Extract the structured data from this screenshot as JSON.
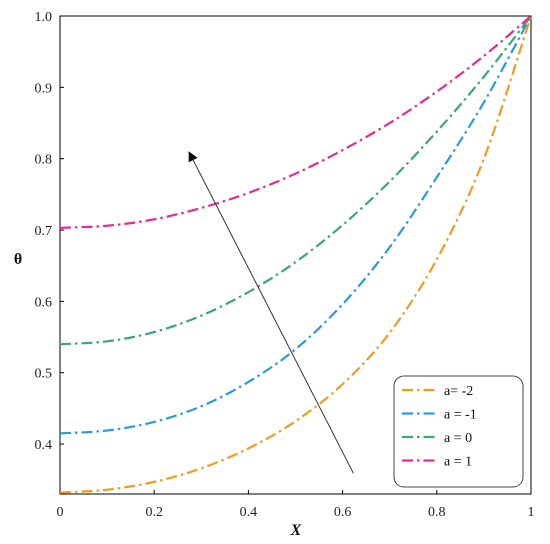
{
  "chart_data": {
    "type": "line",
    "title": "",
    "xlabel": "X",
    "ylabel": "θ",
    "xlim": [
      0,
      1
    ],
    "ylim": [
      0.33,
      1.0
    ],
    "x_ticks": [
      0,
      0.2,
      0.4,
      0.6,
      0.8,
      1
    ],
    "x_tick_labels": [
      "0",
      "0.2",
      "0.4",
      "0.6",
      "0.8",
      "1"
    ],
    "y_ticks": [
      0.4,
      0.5,
      0.6,
      0.7,
      0.8,
      0.9,
      1.0
    ],
    "y_tick_labels": [
      "0.4",
      "0.5",
      "0.6",
      "0.7",
      "0.8",
      "0.9",
      "1.0"
    ],
    "grid": false,
    "legend_position": "bottom-right",
    "line_style": "dash-dot",
    "x": [
      0,
      0.1,
      0.2,
      0.3,
      0.4,
      0.5,
      0.6,
      0.7,
      0.8,
      0.9,
      1.0
    ],
    "series": [
      {
        "name": "a= -2",
        "color": "#f59a1d",
        "values": [
          0.332,
          0.336,
          0.347,
          0.366,
          0.394,
          0.432,
          0.484,
          0.556,
          0.659,
          0.8,
          1.0
        ]
      },
      {
        "name": "a = -1",
        "color": "#2a9ae0",
        "values": [
          0.415,
          0.419,
          0.431,
          0.453,
          0.487,
          0.533,
          0.596,
          0.676,
          0.774,
          0.879,
          1.0
        ]
      },
      {
        "name": "a = 0",
        "color": "#3aaa6c",
        "values": [
          0.54,
          0.544,
          0.557,
          0.58,
          0.613,
          0.655,
          0.707,
          0.768,
          0.838,
          0.915,
          1.0
        ]
      },
      {
        "name": "a = 1",
        "color": "#e62a91",
        "values": [
          0.703,
          0.706,
          0.715,
          0.731,
          0.752,
          0.779,
          0.812,
          0.85,
          0.894,
          0.944,
          1.0
        ]
      }
    ],
    "annotation": {
      "type": "arrow",
      "from": [
        0.623,
        0.359
      ],
      "to": [
        0.275,
        0.808
      ],
      "color": "#333333"
    }
  }
}
